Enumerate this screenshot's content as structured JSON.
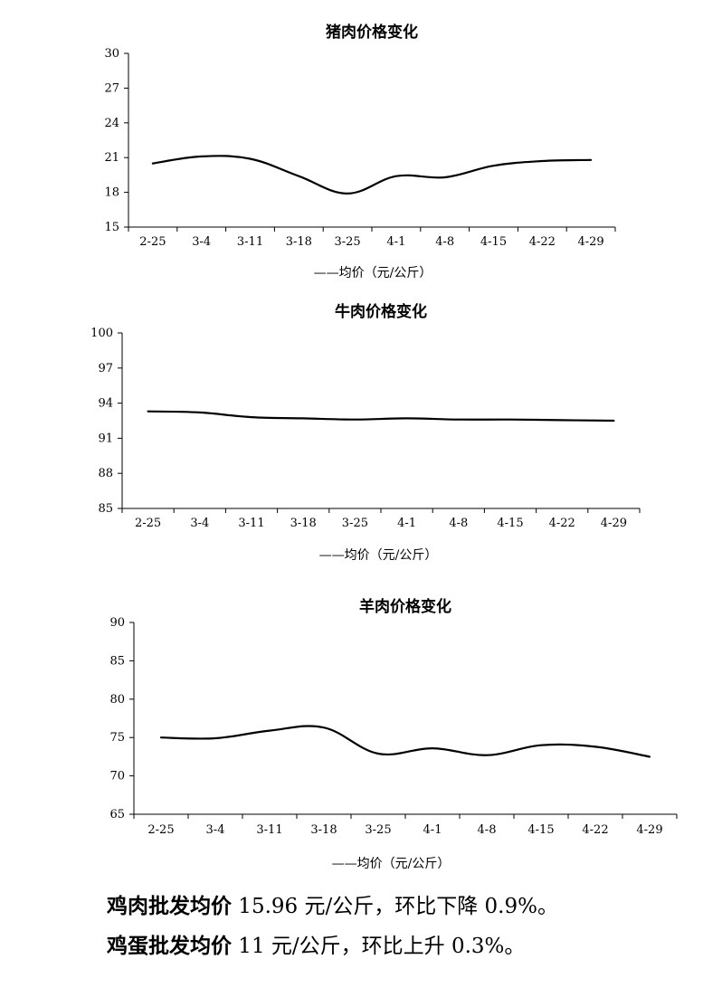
{
  "chart_data": [
    {
      "type": "line",
      "title": "猪肉价格变化",
      "categories": [
        "2-25",
        "3-4",
        "3-11",
        "3-18",
        "3-25",
        "4-1",
        "4-8",
        "4-15",
        "4-22",
        "4-29"
      ],
      "series": [
        {
          "name": "均价（元/公斤）",
          "values": [
            20.5,
            21.1,
            20.9,
            19.4,
            17.9,
            19.4,
            19.3,
            20.3,
            20.7,
            20.8
          ]
        }
      ],
      "ylim": [
        15,
        30
      ],
      "yticks": [
        15,
        18,
        21,
        24,
        27,
        30
      ],
      "legend": "——均价（元/公斤）",
      "grid": false
    },
    {
      "type": "line",
      "title": "牛肉价格变化",
      "categories": [
        "2-25",
        "3-4",
        "3-11",
        "3-18",
        "3-25",
        "4-1",
        "4-8",
        "4-15",
        "4-22",
        "4-29"
      ],
      "series": [
        {
          "name": "均价（元/公斤）",
          "values": [
            93.3,
            93.2,
            92.8,
            92.7,
            92.6,
            92.7,
            92.6,
            92.6,
            92.55,
            92.5
          ]
        }
      ],
      "ylim": [
        85,
        100
      ],
      "yticks": [
        85,
        88,
        91,
        94,
        97,
        100
      ],
      "legend": "——均价（元/公斤）",
      "grid": false
    },
    {
      "type": "line",
      "title": "羊肉价格变化",
      "categories": [
        "2-25",
        "3-4",
        "3-11",
        "3-18",
        "3-25",
        "4-1",
        "4-8",
        "4-15",
        "4-22",
        "4-29"
      ],
      "series": [
        {
          "name": "均价（元/公斤）",
          "values": [
            75.0,
            74.9,
            75.9,
            76.3,
            72.9,
            73.6,
            72.7,
            74.0,
            73.8,
            72.5
          ]
        }
      ],
      "ylim": [
        65,
        90
      ],
      "yticks": [
        65,
        70,
        75,
        80,
        85,
        90
      ],
      "legend": "——均价（元/公斤）",
      "grid": false
    }
  ],
  "notes": [
    {
      "bold": "鸡肉批发均价",
      "rest": " 15.96 元/公斤，环比下降 0.9%。"
    },
    {
      "bold": "鸡蛋批发均价",
      "rest": " 11 元/公斤，环比上升 0.3%。"
    }
  ]
}
